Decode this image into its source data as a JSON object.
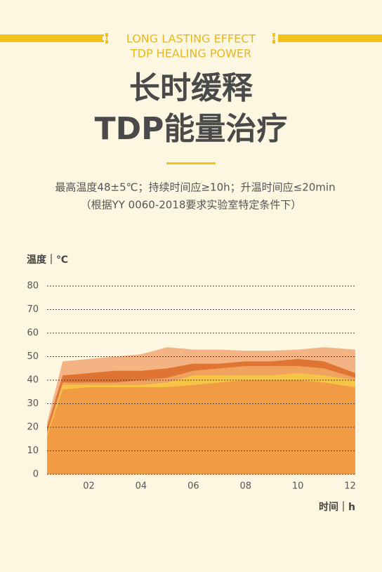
{
  "header": {
    "line1": "LONG LASTING EFFECT",
    "line2": "TDP HEALING POWER"
  },
  "title": {
    "line1": "长时缓释",
    "line2": "TDP能量治疗"
  },
  "note": {
    "line1": "最高温度48±5℃；持续时间应≥10h；升温时间应≤20min",
    "line2": "（根据YY 0060-2018要求实验室特定条件下）"
  },
  "chart_data": {
    "type": "area",
    "y_label": "温度｜℃",
    "x_label": "时间｜h",
    "x": [
      0.4,
      1,
      2,
      3,
      4,
      5,
      6,
      7,
      8,
      9,
      10,
      11,
      12.2
    ],
    "series": [
      {
        "color": "#f3b383",
        "values": [
          22,
          48,
          49,
          50,
          51,
          54,
          53,
          53,
          52.5,
          52.5,
          53,
          54,
          53
        ]
      },
      {
        "color": "#e07432",
        "values": [
          20,
          42,
          43,
          44,
          44,
          45,
          47,
          47,
          48,
          48,
          49,
          48,
          43
        ]
      },
      {
        "color": "#f0a25f",
        "values": [
          18,
          39,
          39,
          39,
          40,
          41,
          44,
          45,
          46,
          46,
          46,
          45,
          41
        ]
      },
      {
        "color": "#f7c545",
        "values": [
          17,
          38,
          38,
          38,
          38,
          39,
          42,
          42,
          42,
          42,
          43,
          42,
          40
        ]
      },
      {
        "color": "#f29b45",
        "values": [
          16,
          36,
          37,
          37,
          37,
          37,
          38,
          39,
          40,
          40,
          40,
          39,
          37
        ]
      }
    ],
    "xlim": [
      0.4,
      12.2
    ],
    "ylim": [
      0,
      80
    ],
    "xticks": [
      {
        "value": 2,
        "label": "02"
      },
      {
        "value": 4,
        "label": "04"
      },
      {
        "value": 6,
        "label": "06"
      },
      {
        "value": 8,
        "label": "08"
      },
      10,
      12
    ],
    "yticks": [
      0,
      10,
      20,
      30,
      40,
      50,
      60,
      70,
      80
    ],
    "grid": true
  }
}
